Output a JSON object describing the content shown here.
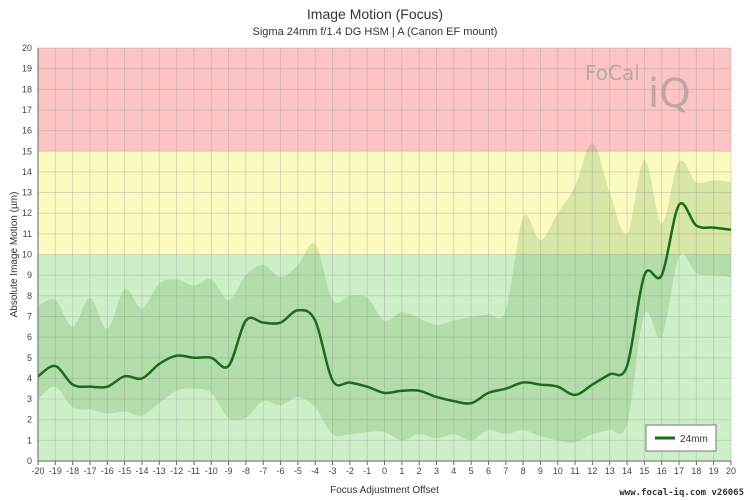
{
  "chart_data": {
    "type": "line",
    "title": "Image Motion (Focus)",
    "subtitle": "Sigma 24mm f/1.4 DG HSM | A (Canon EF mount)",
    "xlabel": "Focus Adjustment Offset",
    "ylabel": "Absolute Image Motion (µm)",
    "xlim": [
      -20,
      20
    ],
    "ylim": [
      0,
      20
    ],
    "x_ticks": [
      "-20",
      "-19",
      "-18",
      "-17",
      "-16",
      "-15",
      "-14",
      "-13",
      "-12",
      "-11",
      "-10",
      "-9",
      "-8",
      "-7",
      "-6",
      "-5",
      "-4",
      "-3",
      "-2",
      "-1",
      "0",
      "1",
      "2",
      "3",
      "4",
      "5",
      "6",
      "7",
      "8",
      "9",
      "10",
      "11",
      "12",
      "13",
      "14",
      "15",
      "16",
      "17",
      "18",
      "19",
      "20"
    ],
    "y_ticks": [
      "0",
      "1",
      "2",
      "3",
      "4",
      "5",
      "6",
      "7",
      "8",
      "9",
      "10",
      "11",
      "12",
      "13",
      "14",
      "15",
      "16",
      "17",
      "18",
      "19",
      "20"
    ],
    "grid": true,
    "legend_position": "bottom-right",
    "zones": [
      {
        "from": 0,
        "to": 10,
        "color": "#cdf0c8"
      },
      {
        "from": 10,
        "to": 15,
        "color": "#fbfbc0"
      },
      {
        "from": 15,
        "to": 20,
        "color": "#fcc4c4"
      }
    ],
    "series": [
      {
        "name": "24mm",
        "color": "#1a6e1a",
        "x": [
          -20,
          -19,
          -18,
          -17,
          -16,
          -15,
          -14,
          -13,
          -12,
          -11,
          -10,
          -9,
          -8,
          -7,
          -6,
          -5,
          -4,
          -3,
          -2,
          -1,
          0,
          1,
          2,
          3,
          4,
          5,
          6,
          7,
          8,
          9,
          10,
          11,
          12,
          13,
          14,
          15,
          16,
          17,
          18,
          19,
          20
        ],
        "values": [
          4.1,
          4.6,
          3.7,
          3.6,
          3.6,
          4.1,
          4.0,
          4.7,
          5.1,
          5.0,
          5.0,
          4.6,
          6.8,
          6.7,
          6.7,
          7.3,
          6.8,
          3.9,
          3.8,
          3.6,
          3.3,
          3.4,
          3.4,
          3.1,
          2.9,
          2.8,
          3.3,
          3.5,
          3.8,
          3.7,
          3.6,
          3.2,
          3.7,
          4.2,
          4.6,
          9.0,
          9.0,
          12.4,
          11.4,
          11.3,
          11.2
        ]
      }
    ],
    "band_upper": [
      7.5,
      7.8,
      6.5,
      7.9,
      6.4,
      8.3,
      7.4,
      8.6,
      8.8,
      8.5,
      8.8,
      7.8,
      9.0,
      9.5,
      8.9,
      9.5,
      10.5,
      7.8,
      8.0,
      7.9,
      6.8,
      7.2,
      6.9,
      6.6,
      6.8,
      7.0,
      7.1,
      7.3,
      11.8,
      10.7,
      12.0,
      13.3,
      15.4,
      13.0,
      11.0,
      14.6,
      11.5,
      14.5,
      13.5,
      13.6,
      13.5
    ],
    "band_lower": [
      3.0,
      3.6,
      2.6,
      2.5,
      2.3,
      2.4,
      2.2,
      2.8,
      3.4,
      3.5,
      3.3,
      2.1,
      2.1,
      2.9,
      2.7,
      3.1,
      2.6,
      1.3,
      1.3,
      1.4,
      1.4,
      1.0,
      1.3,
      1.1,
      1.3,
      1.0,
      1.5,
      1.3,
      1.5,
      1.2,
      1.0,
      0.9,
      1.3,
      1.5,
      1.8,
      7.1,
      6.0,
      9.9,
      9.1,
      9.0,
      8.9
    ],
    "legend": [
      "24mm"
    ]
  },
  "watermark": "FoCal iQ",
  "footer": "www.focal-iq.com  v26065"
}
